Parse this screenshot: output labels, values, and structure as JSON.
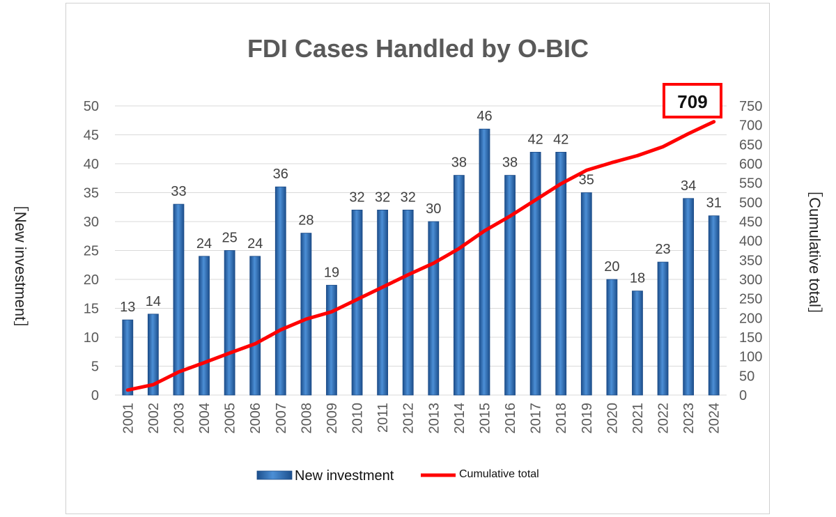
{
  "chart_data": {
    "type": "bar+line",
    "title": "FDI Cases Handled by O-BIC",
    "categories": [
      "2001",
      "2002",
      "2003",
      "2004",
      "2005",
      "2006",
      "2007",
      "2008",
      "2009",
      "2010",
      "2011",
      "2012",
      "2013",
      "2014",
      "2015",
      "2016",
      "2017",
      "2018",
      "2019",
      "2020",
      "2021",
      "2022",
      "2023",
      "2024"
    ],
    "series": [
      {
        "name": "New investment",
        "type": "bar",
        "axis": "left",
        "color": "#2e6fb7",
        "values": [
          13,
          14,
          33,
          24,
          25,
          24,
          36,
          28,
          19,
          32,
          32,
          32,
          30,
          38,
          46,
          38,
          42,
          42,
          35,
          20,
          18,
          23,
          34,
          31
        ]
      },
      {
        "name": "Cumulative total",
        "type": "line",
        "axis": "right",
        "color": "#ff0000",
        "values": [
          13,
          27,
          60,
          84,
          109,
          133,
          169,
          197,
          216,
          248,
          280,
          312,
          342,
          380,
          426,
          464,
          506,
          548,
          583,
          603,
          621,
          644,
          678,
          709
        ]
      }
    ],
    "ylabel_left": "［New investment］",
    "ylabel_right": "［Cumulative total］",
    "ylim_left": [
      0,
      50
    ],
    "yticks_left": [
      0,
      5,
      10,
      15,
      20,
      25,
      30,
      35,
      40,
      45,
      50
    ],
    "ylim_right": [
      0,
      750
    ],
    "yticks_right": [
      0,
      50,
      100,
      150,
      200,
      250,
      300,
      350,
      400,
      450,
      500,
      550,
      600,
      650,
      700,
      750
    ],
    "grid": true,
    "legend": "bottom",
    "callout": {
      "label": "709",
      "border_color": "#ff0000"
    }
  }
}
